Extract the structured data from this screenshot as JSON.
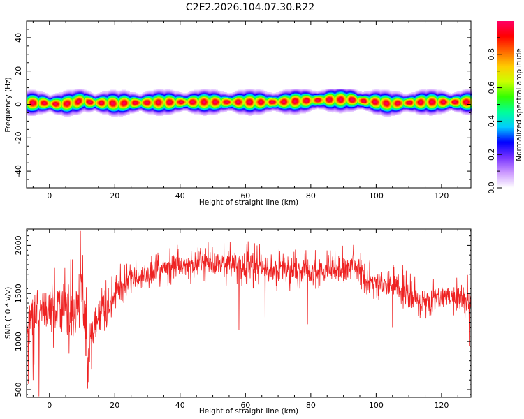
{
  "title": "C2E2.2026.104.07.30.R22",
  "chart_data": [
    {
      "type": "heatmap",
      "xlabel": "Height of straight line (km)",
      "ylabel": "Frequency (Hz)",
      "xlim": [
        -7,
        129
      ],
      "ylim": [
        -50,
        50
      ],
      "xticks": [
        0,
        20,
        40,
        60,
        80,
        100,
        120
      ],
      "yticks": [
        -40,
        -20,
        0,
        20,
        40
      ],
      "band_center_hz": [
        [
          -6,
          1.0
        ],
        [
          -2,
          1.0
        ],
        [
          2,
          0.3
        ],
        [
          5,
          0.5
        ],
        [
          8,
          1.5
        ],
        [
          10,
          2.5
        ],
        [
          12,
          1.5
        ],
        [
          15,
          1.0
        ],
        [
          18,
          1.0
        ],
        [
          21,
          0.5
        ],
        [
          23,
          1.0
        ],
        [
          30,
          1.2
        ],
        [
          40,
          1.5
        ],
        [
          50,
          1.5
        ],
        [
          60,
          1.5
        ],
        [
          70,
          1.5
        ],
        [
          80,
          2.5
        ],
        [
          86,
          3.0
        ],
        [
          92,
          3.0
        ],
        [
          97,
          2.0
        ],
        [
          100,
          1.5
        ],
        [
          104,
          0.5
        ],
        [
          108,
          1.0
        ],
        [
          115,
          1.5
        ],
        [
          122,
          1.5
        ],
        [
          129,
          1.5
        ]
      ],
      "colorbar": {
        "label": "Normalized spectral amplitude",
        "ticks": [
          "0.0",
          "0.2",
          "0.4",
          "0.6",
          "0.8"
        ],
        "range": [
          0,
          1
        ],
        "colors": [
          "#ffffff",
          "#cc99ff",
          "#7733ff",
          "#0000ff",
          "#00ccff",
          "#00ff99",
          "#33ff00",
          "#ccff00",
          "#ffcc00",
          "#ff6600",
          "#ff0000",
          "#ff0066"
        ]
      }
    },
    {
      "type": "line",
      "xlabel": "Height of straight line (km)",
      "ylabel": "SNR (10 * v/v)",
      "xlim": [
        -7,
        129
      ],
      "ylim": [
        420,
        2170
      ],
      "xticks": [
        0,
        20,
        40,
        60,
        80,
        100,
        120
      ],
      "yticks": [
        500,
        1000,
        1500,
        2000
      ],
      "series": [
        {
          "color": "#ee2222",
          "envelope": [
            {
              "x": -7,
              "low": 700,
              "mean": 1150,
              "high": 1550
            },
            {
              "x": -3,
              "low": 800,
              "mean": 1300,
              "high": 1650
            },
            {
              "x": 0,
              "low": 900,
              "mean": 1350,
              "high": 1750
            },
            {
              "x": 4,
              "low": 950,
              "mean": 1400,
              "high": 1800
            },
            {
              "x": 8,
              "low": 800,
              "mean": 1250,
              "high": 1900
            },
            {
              "x": 9.5,
              "low": 1000,
              "mean": 1600,
              "high": 2150
            },
            {
              "x": 11,
              "low": 700,
              "mean": 1100,
              "high": 1600
            },
            {
              "x": 12,
              "low": 550,
              "mean": 950,
              "high": 1500
            },
            {
              "x": 14,
              "low": 900,
              "mean": 1200,
              "high": 1500
            },
            {
              "x": 17,
              "low": 1000,
              "mean": 1300,
              "high": 1650
            },
            {
              "x": 20,
              "low": 1200,
              "mean": 1500,
              "high": 1800
            },
            {
              "x": 23,
              "low": 1400,
              "mean": 1620,
              "high": 1850
            },
            {
              "x": 30,
              "low": 1500,
              "mean": 1700,
              "high": 1900
            },
            {
              "x": 38,
              "low": 1580,
              "mean": 1780,
              "high": 2000
            },
            {
              "x": 45,
              "low": 1600,
              "mean": 1820,
              "high": 2100
            },
            {
              "x": 52,
              "low": 1580,
              "mean": 1820,
              "high": 2080
            },
            {
              "x": 60,
              "low": 1550,
              "mean": 1790,
              "high": 2050
            },
            {
              "x": 70,
              "low": 1520,
              "mean": 1750,
              "high": 1980
            },
            {
              "x": 80,
              "low": 1500,
              "mean": 1720,
              "high": 1950
            },
            {
              "x": 88,
              "low": 1550,
              "mean": 1760,
              "high": 2000
            },
            {
              "x": 93,
              "low": 1580,
              "mean": 1790,
              "high": 2050
            },
            {
              "x": 97,
              "low": 1450,
              "mean": 1650,
              "high": 1900
            },
            {
              "x": 102,
              "low": 1400,
              "mean": 1600,
              "high": 1850
            },
            {
              "x": 108,
              "low": 1350,
              "mean": 1550,
              "high": 1800
            },
            {
              "x": 114,
              "low": 1200,
              "mean": 1420,
              "high": 1650
            },
            {
              "x": 120,
              "low": 1250,
              "mean": 1450,
              "high": 1700
            },
            {
              "x": 125,
              "low": 1280,
              "mean": 1480,
              "high": 1720
            },
            {
              "x": 129,
              "low": 1200,
              "mean": 1400,
              "high": 1750
            }
          ],
          "spikes": [
            {
              "x": -6.5,
              "y": 560
            },
            {
              "x": -5,
              "y": 600
            },
            {
              "x": -3.2,
              "y": 430
            },
            {
              "x": 9.5,
              "y": 2150
            },
            {
              "x": 10.2,
              "y": 1900
            },
            {
              "x": 11.7,
              "y": 510
            },
            {
              "x": 58,
              "y": 1120
            },
            {
              "x": 66,
              "y": 1250
            },
            {
              "x": 79,
              "y": 1180
            },
            {
              "x": 105,
              "y": 1150
            },
            {
              "x": 128.5,
              "y": 950
            }
          ]
        }
      ]
    }
  ]
}
